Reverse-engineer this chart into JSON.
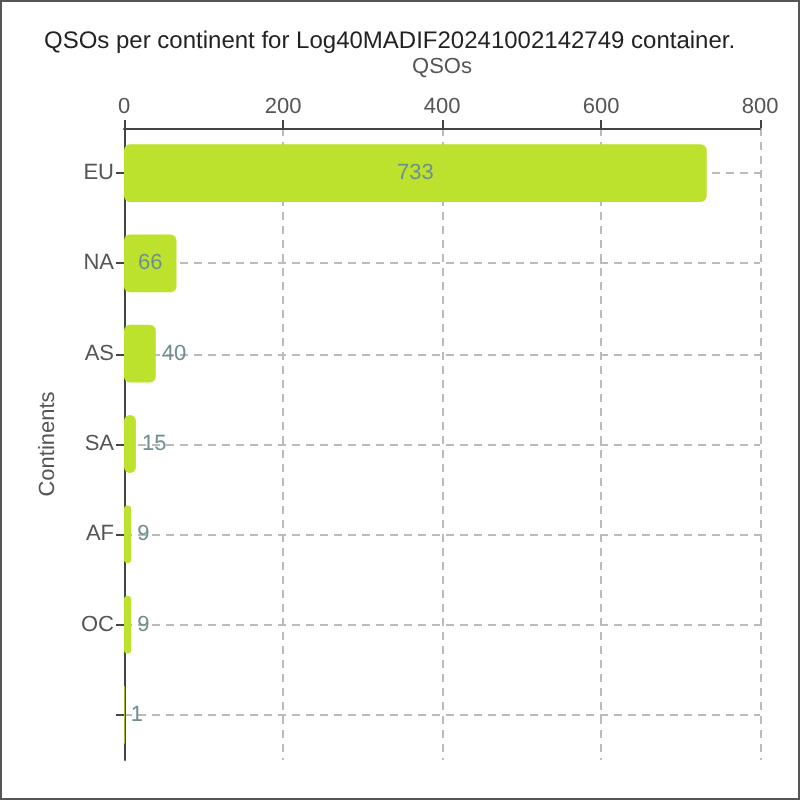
{
  "chart_data": {
    "type": "bar",
    "orientation": "horizontal",
    "title": "QSOs per continent for Log40MADIF20241002142749 container.",
    "xlabel": "QSOs",
    "ylabel": "Continents",
    "categories": [
      "EU",
      "NA",
      "AS",
      "SA",
      "AF",
      "OC",
      null
    ],
    "values": [
      733,
      66,
      40,
      15,
      9,
      9,
      1
    ],
    "color": "#bde22e",
    "xlim": [
      0,
      800
    ],
    "xticks": [
      0,
      200,
      400,
      600,
      800
    ],
    "grid": true,
    "data_labels": true
  }
}
